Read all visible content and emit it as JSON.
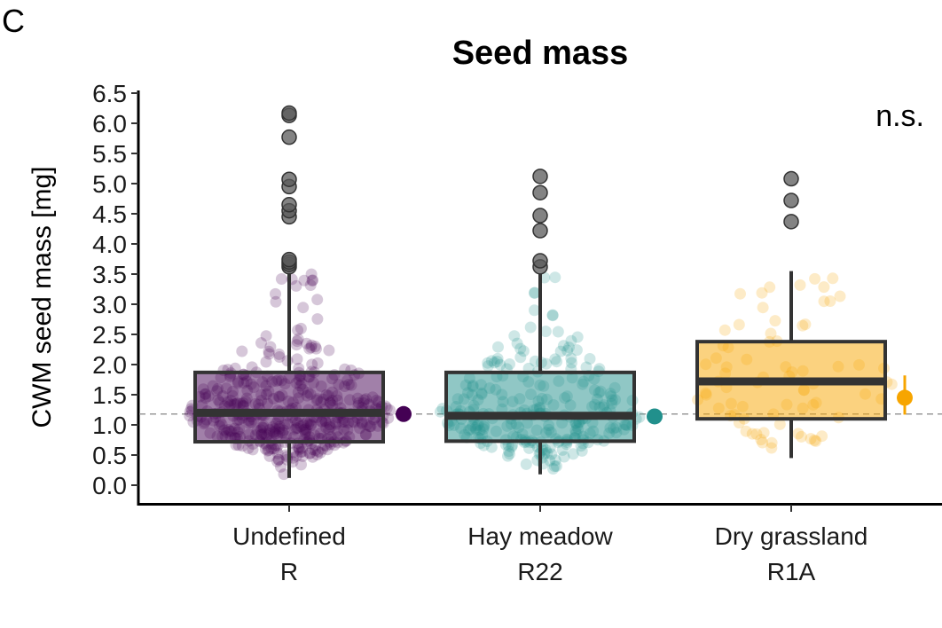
{
  "panel_letter": "C",
  "chart_data": {
    "type": "box",
    "title": "Seed mass",
    "ylabel": "CWM seed mass [mg]",
    "xlabel": "",
    "ylim": [
      -0.2,
      6.55
    ],
    "yticks": [
      "0.0",
      "0.5",
      "1.0",
      "1.5",
      "2.0",
      "2.5",
      "3.0",
      "3.5",
      "4.0",
      "4.5",
      "5.0",
      "5.5",
      "6.0",
      "6.5"
    ],
    "annotation": "n.s.",
    "reference_line": 1.18,
    "grid": false,
    "categories": [
      {
        "line1": "Undefined",
        "line2": "R",
        "color": "#440154",
        "q1": 0.72,
        "median": 1.2,
        "q3": 1.87,
        "whisker_low": 0.12,
        "whisker_high": 3.52,
        "mean": 1.18,
        "ci": [
          1.14,
          1.22
        ],
        "outliers": [
          3.62,
          3.66,
          3.7,
          3.74,
          4.45,
          4.55,
          4.65,
          4.95,
          5.07,
          5.77,
          6.13,
          6.17
        ],
        "n_points": 420
      },
      {
        "line1": "Hay meadow",
        "line2": "R22",
        "color": "#21908C",
        "q1": 0.73,
        "median": 1.15,
        "q3": 1.87,
        "whisker_low": 0.18,
        "whisker_high": 3.5,
        "mean": 1.14,
        "ci": [
          1.06,
          1.25
        ],
        "outliers": [
          3.62,
          3.72,
          4.22,
          4.47,
          4.85,
          5.12
        ],
        "n_points": 260
      },
      {
        "line1": "Dry grassland",
        "line2": "R1A",
        "color": "#F7A500",
        "q1": 1.1,
        "median": 1.72,
        "q3": 2.38,
        "whisker_low": 0.45,
        "whisker_high": 3.55,
        "mean": 1.45,
        "ci": [
          1.17,
          1.82
        ],
        "outliers": [
          4.37,
          4.72,
          5.08
        ],
        "n_points": 75
      }
    ]
  }
}
